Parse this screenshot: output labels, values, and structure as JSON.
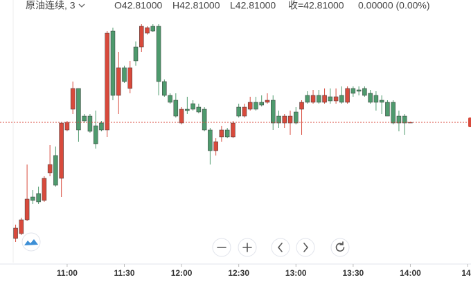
{
  "chart_data": {
    "type": "candlestick",
    "header": {
      "symbol": "原油连续, 3",
      "open": "O42.81000",
      "high": "H42.81000",
      "low": "L42.81000",
      "close": "收=42.81000",
      "change": "0.00000 (0.00%)"
    },
    "x": [
      633,
      636,
      639,
      642,
      645,
      648,
      651,
      654,
      657,
      660,
      663,
      666,
      669,
      672,
      675,
      678,
      681,
      684,
      687,
      690,
      693,
      696,
      699,
      702,
      705,
      708,
      711,
      714,
      717,
      720,
      723,
      726,
      729,
      732,
      735,
      738,
      741,
      744,
      747,
      750,
      753,
      756,
      759,
      762,
      765,
      768,
      771,
      774,
      777,
      780,
      783,
      786,
      789,
      792,
      795,
      798,
      801,
      804,
      807,
      810,
      813,
      816,
      819,
      822,
      825,
      828,
      831,
      834,
      837,
      840
    ],
    "open": [
      42.642,
      42.649,
      42.669,
      42.702,
      42.707,
      42.697,
      42.737,
      42.762,
      42.729,
      42.799,
      42.829,
      42.859,
      42.819,
      42.819,
      42.805,
      42.809,
      42.799,
      42.942,
      42.849,
      42.889,
      42.859,
      42.919,
      42.919,
      42.939,
      42.949,
      42.949,
      42.869,
      42.849,
      42.842,
      42.809,
      42.829,
      42.837,
      42.832,
      42.829,
      42.799,
      42.769,
      42.789,
      42.799,
      42.789,
      42.832,
      42.819,
      42.829,
      42.839,
      42.839,
      42.839,
      42.842,
      42.819,
      42.809,
      42.809,
      42.825,
      42.829,
      42.849,
      42.839,
      42.849,
      42.839,
      42.847,
      42.841,
      42.849,
      42.839,
      42.859,
      42.857,
      42.859,
      42.852,
      42.849,
      42.842,
      42.839,
      42.839,
      42.819,
      42.819,
      42.81
    ],
    "high": [
      42.662,
      42.672,
      42.749,
      42.712,
      42.717,
      42.732,
      42.777,
      42.775,
      42.809,
      42.812,
      42.869,
      42.859,
      42.822,
      42.822,
      42.827,
      42.812,
      42.942,
      42.947,
      42.912,
      42.892,
      42.899,
      42.927,
      42.952,
      42.949,
      42.952,
      42.952,
      42.872,
      42.852,
      42.852,
      42.832,
      42.847,
      42.842,
      42.837,
      42.832,
      42.802,
      42.787,
      42.805,
      42.802,
      42.812,
      42.837,
      42.837,
      42.847,
      42.847,
      42.849,
      42.852,
      42.849,
      42.827,
      42.822,
      42.827,
      42.832,
      42.842,
      42.855,
      42.857,
      42.857,
      42.859,
      42.859,
      42.859,
      42.862,
      42.862,
      42.862,
      42.862,
      42.862,
      42.857,
      42.855,
      42.849,
      42.842,
      42.842,
      42.827,
      42.822,
      42.811
    ],
    "low": [
      42.637,
      42.647,
      42.667,
      42.692,
      42.692,
      42.695,
      42.732,
      42.717,
      42.702,
      42.797,
      42.822,
      42.782,
      42.809,
      42.795,
      42.772,
      42.797,
      42.789,
      42.842,
      42.822,
      42.867,
      42.852,
      42.892,
      42.912,
      42.937,
      42.941,
      42.849,
      42.847,
      42.837,
      42.817,
      42.807,
      42.822,
      42.827,
      42.823,
      42.797,
      42.749,
      42.762,
      42.782,
      42.787,
      42.787,
      42.817,
      42.817,
      42.827,
      42.827,
      42.833,
      42.837,
      42.799,
      42.802,
      42.802,
      42.792,
      42.807,
      42.792,
      42.837,
      42.837,
      42.837,
      42.837,
      42.837,
      42.837,
      42.837,
      42.837,
      42.847,
      42.849,
      42.847,
      42.837,
      42.827,
      42.822,
      42.819,
      42.807,
      42.797,
      42.792,
      42.809
    ],
    "close": [
      42.657,
      42.669,
      42.699,
      42.697,
      42.695,
      42.729,
      42.749,
      42.719,
      42.809,
      42.81,
      42.859,
      42.799,
      42.812,
      42.797,
      42.779,
      42.799,
      42.939,
      42.849,
      42.889,
      42.869,
      42.889,
      42.899,
      42.949,
      42.947,
      42.942,
      42.869,
      42.849,
      42.839,
      42.819,
      42.829,
      42.827,
      42.829,
      42.825,
      42.799,
      42.769,
      42.782,
      42.799,
      42.789,
      42.809,
      42.819,
      42.832,
      42.839,
      42.829,
      42.835,
      42.842,
      42.809,
      42.809,
      42.819,
      42.819,
      42.809,
      42.839,
      42.839,
      42.849,
      42.839,
      42.849,
      42.841,
      42.847,
      42.839,
      42.859,
      42.852,
      42.855,
      42.849,
      42.839,
      42.839,
      42.839,
      42.819,
      42.809,
      42.809,
      42.809,
      42.81
    ],
    "up_color": "#d84a3c",
    "down_color": "#4e9a6d",
    "last_price": 42.81,
    "xlim": [
      624.8,
      871.8
    ],
    "ylim": [
      42.607,
      42.967
    ],
    "xticks": [
      {
        "value": 660,
        "label": "11:00"
      },
      {
        "value": 690,
        "label": "11:30"
      },
      {
        "value": 720,
        "label": "12:00"
      },
      {
        "value": 750,
        "label": "12:30"
      },
      {
        "value": 780,
        "label": "13:00"
      },
      {
        "value": 810,
        "label": "13:30"
      },
      {
        "value": 840,
        "label": "14:00"
      },
      {
        "value": 870,
        "label": "14:"
      }
    ]
  }
}
